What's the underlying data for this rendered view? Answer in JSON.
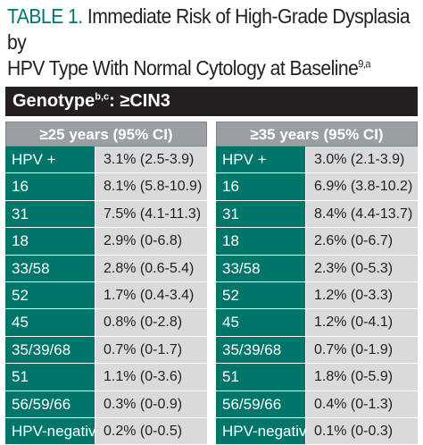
{
  "title": {
    "label": "TABLE 1.",
    "text_line1": " Immediate Risk of High-Grade Dysplasia by",
    "text_line2": "HPV Type With Normal Cytology at Baseline",
    "footnote": "9,a"
  },
  "genotype_bar": {
    "label": "Genotype",
    "footnote": "b,c",
    "suffix": ": ≥CIN3"
  },
  "tables": [
    {
      "header": "≥25 years (95% CI)",
      "rows": [
        {
          "type": "HPV +",
          "value": "3.1% (2.5-3.9)"
        },
        {
          "type": "16",
          "value": "8.1% (5.8-10.9)"
        },
        {
          "type": "31",
          "value": "7.5% (4.1-11.3)"
        },
        {
          "type": "18",
          "value": "2.9% (0-6.8)"
        },
        {
          "type": "33/58",
          "value": "2.8% (0.6-5.4)"
        },
        {
          "type": "52",
          "value": "1.7% (0.4-3.4)"
        },
        {
          "type": "45",
          "value": "0.8% (0-2.8)"
        },
        {
          "type": "35/39/68",
          "value": "0.7% (0-1.7)"
        },
        {
          "type": "51",
          "value": "1.1% (0-3.6)"
        },
        {
          "type": "56/59/66",
          "value": "0.3% (0-0.9)"
        },
        {
          "type": "HPV-negative",
          "value": "0.2% (0-0.5)"
        }
      ]
    },
    {
      "header": "≥35 years (95% CI)",
      "rows": [
        {
          "type": "HPV +",
          "value": "3.0% (2.1-3.9)"
        },
        {
          "type": "16",
          "value": "6.9% (3.8-10.2)"
        },
        {
          "type": "31",
          "value": "8.4% (4.4-13.7)"
        },
        {
          "type": "18",
          "value": "2.6% (0-6.7)"
        },
        {
          "type": "33/58",
          "value": "2.3% (0-5.3)"
        },
        {
          "type": "52",
          "value": "1.2% (0-3.3)"
        },
        {
          "type": "45",
          "value": "1.2% (0-4.1)"
        },
        {
          "type": "35/39/68",
          "value": "0.7% (0-1.9)"
        },
        {
          "type": "51",
          "value": "1.8% (0-5.9)"
        },
        {
          "type": "56/59/66",
          "value": "0.4% (0-1.3)"
        },
        {
          "type": "HPV-negative",
          "value": "0.1% (0-0.3)"
        }
      ]
    }
  ],
  "colors": {
    "teal": "#00766a",
    "dark_bar": "#231f20",
    "header_gray": "#9a9fa3",
    "cell_gray": "#d9dadb"
  }
}
